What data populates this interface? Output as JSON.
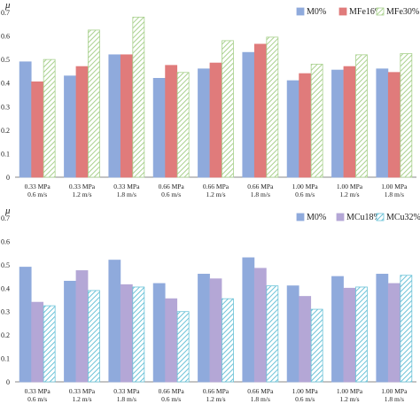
{
  "chart_data": [
    {
      "type": "bar",
      "ylabel": "μ",
      "ylim": [
        0,
        0.7
      ],
      "yticks": [
        "0",
        "0.1",
        "0.2",
        "0.3",
        "0.4",
        "0.5",
        "0.6",
        "0.7"
      ],
      "categories": [
        [
          "0.33 MPa",
          "0.6 m/s"
        ],
        [
          "0.33 MPa",
          "1.2 m/s"
        ],
        [
          "0.33 MPa",
          "1.8 m/s"
        ],
        [
          "0.66 MPa",
          "0.6 m/s"
        ],
        [
          "0.66 MPa",
          "1.2 m/s"
        ],
        [
          "0.66 MPa",
          "1.8 m/s"
        ],
        [
          "1.00 MPa",
          "0.6 m/s"
        ],
        [
          "1.00 MPa",
          "1.2 m/s"
        ],
        [
          "1.00 MPa",
          "1.8 m/s"
        ]
      ],
      "legend_position": "top-right",
      "series": [
        {
          "name": "M0%",
          "color": "#8faadc",
          "pattern": "solid",
          "values": [
            0.49,
            0.43,
            0.52,
            0.42,
            0.46,
            0.53,
            0.41,
            0.455,
            0.46
          ]
        },
        {
          "name": "MFe16%",
          "color": "#e07b7b",
          "pattern": "solid",
          "values": [
            0.405,
            0.47,
            0.52,
            0.475,
            0.485,
            0.565,
            0.44,
            0.47,
            0.445
          ]
        },
        {
          "name": "MFe30%",
          "color": "#a9d18e",
          "pattern": "stripes",
          "values": [
            0.5,
            0.625,
            0.68,
            0.445,
            0.58,
            0.595,
            0.48,
            0.52,
            0.525
          ]
        }
      ]
    },
    {
      "type": "bar",
      "ylabel": "μ",
      "ylim": [
        0,
        0.7
      ],
      "yticks": [
        "0",
        "0.1",
        "0.2",
        "0.3",
        "0.4",
        "0.5",
        "0.6",
        "0.7"
      ],
      "categories": [
        [
          "0.33 MPa",
          "0.6 m/s"
        ],
        [
          "0.33 MPa",
          "1.2 m/s"
        ],
        [
          "0.33 MPa",
          "1.8 m/s"
        ],
        [
          "0.66 MPa",
          "0.6 m/s"
        ],
        [
          "0.66 MPa",
          "1.2 m/s"
        ],
        [
          "0.66 MPa",
          "1.8 m/s"
        ],
        [
          "1.00 MPa",
          "0.6 m/s"
        ],
        [
          "1.00 MPa",
          "1.2 m/s"
        ],
        [
          "1.00 MPa",
          "1.8 m/s"
        ]
      ],
      "legend_position": "top-right",
      "series": [
        {
          "name": "M0%",
          "color": "#8faadc",
          "pattern": "solid",
          "values": [
            0.49,
            0.43,
            0.52,
            0.42,
            0.46,
            0.53,
            0.41,
            0.45,
            0.46
          ]
        },
        {
          "name": "MCu18%",
          "color": "#b4a7d6",
          "pattern": "solid",
          "values": [
            0.34,
            0.475,
            0.415,
            0.355,
            0.44,
            0.485,
            0.365,
            0.4,
            0.42
          ]
        },
        {
          "name": "MCu32%",
          "color": "#6cc3d8",
          "pattern": "stripes",
          "values": [
            0.325,
            0.39,
            0.405,
            0.3,
            0.355,
            0.41,
            0.31,
            0.405,
            0.455
          ]
        }
      ]
    }
  ]
}
